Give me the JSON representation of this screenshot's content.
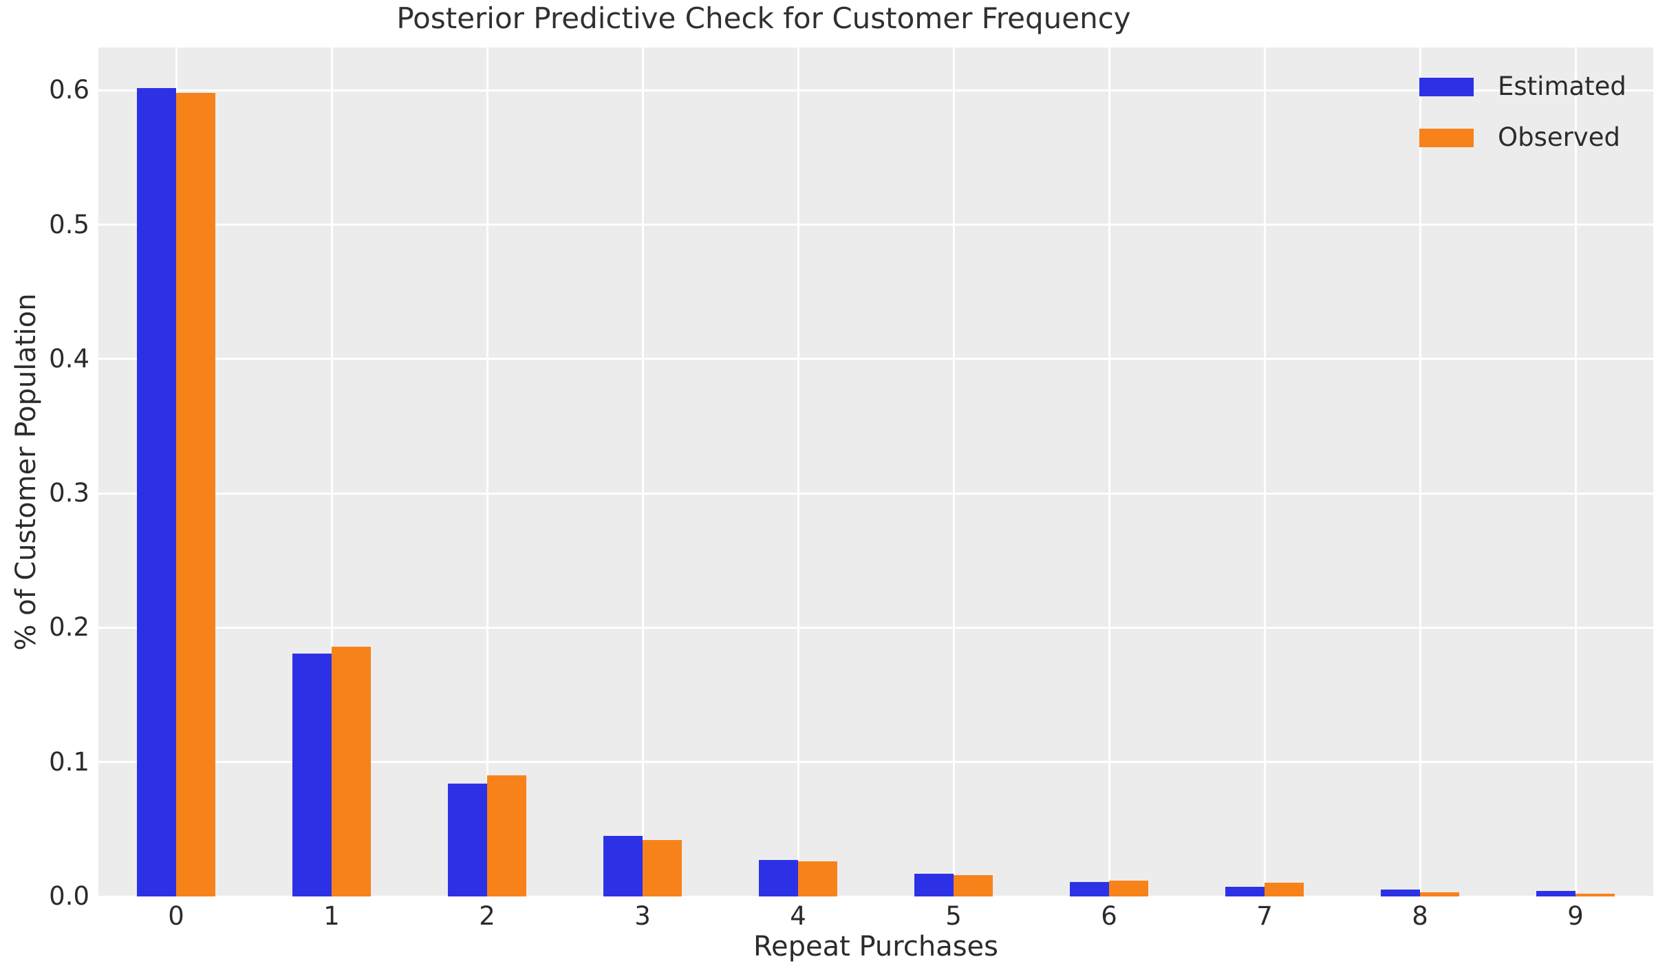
{
  "figure": {
    "title": "Posterior Predictive Check for Customer Frequency",
    "x_axis": {
      "label": "Repeat Purchases"
    },
    "y_axis": {
      "label": "% of Customer Population"
    },
    "colors": {
      "estimated": "#2d31e6",
      "observed": "#f8821a",
      "plot_background": "#ececec",
      "gridline": "#ffffff",
      "text": "#2b2b2b",
      "page_background": "#ffffff"
    }
  },
  "chart_data": {
    "type": "bar",
    "title": "Posterior Predictive Check for Customer Frequency",
    "xlabel": "Repeat Purchases",
    "ylabel": "% of Customer Population",
    "categories": [
      "0",
      "1",
      "2",
      "3",
      "4",
      "5",
      "6",
      "7",
      "8",
      "9"
    ],
    "series": [
      {
        "name": "Estimated",
        "color": "#2d31e6",
        "values": [
          0.602,
          0.181,
          0.084,
          0.045,
          0.027,
          0.017,
          0.011,
          0.007,
          0.005,
          0.004
        ]
      },
      {
        "name": "Observed",
        "color": "#f8821a",
        "values": [
          0.598,
          0.186,
          0.09,
          0.042,
          0.026,
          0.016,
          0.012,
          0.01,
          0.003,
          0.002
        ]
      }
    ],
    "ylim": [
      0,
      0.632
    ],
    "yticks": [
      0.0,
      0.1,
      0.2,
      0.3,
      0.4,
      0.5,
      0.6
    ],
    "ytick_labels": [
      "0.0",
      "0.1",
      "0.2",
      "0.3",
      "0.4",
      "0.5",
      "0.6"
    ],
    "grid": true,
    "grid_color": "#ffffff",
    "legend_position": "upper right",
    "legend_frame": false
  }
}
